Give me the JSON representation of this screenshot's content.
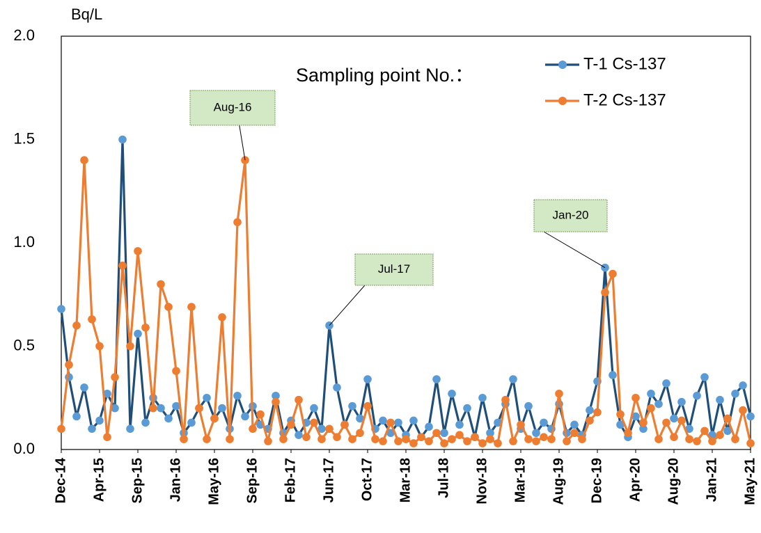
{
  "chart_data": {
    "type": "line",
    "y_label": "Bq/L",
    "legend_title": "Sampling point No.：",
    "categories": [
      "Dec-14",
      null,
      null,
      null,
      null,
      "Apr-15",
      null,
      null,
      null,
      null,
      "Sep-15",
      null,
      null,
      null,
      null,
      "Jan-16",
      null,
      null,
      null,
      null,
      "May-16",
      null,
      null,
      null,
      null,
      "Sep-16",
      null,
      null,
      null,
      null,
      "Feb-17",
      null,
      null,
      null,
      null,
      "Jun-17",
      null,
      null,
      null,
      null,
      "Oct-17",
      null,
      null,
      null,
      null,
      "Mar-18",
      null,
      null,
      null,
      null,
      "Jul-18",
      null,
      null,
      null,
      null,
      "Nov-18",
      null,
      null,
      null,
      null,
      "Mar-19",
      null,
      null,
      null,
      null,
      "Aug-19",
      null,
      null,
      null,
      null,
      "Dec-19",
      null,
      null,
      null,
      null,
      "Apr-20",
      null,
      null,
      null,
      null,
      "Aug-20",
      null,
      null,
      null,
      null,
      "Jan-21",
      null,
      null,
      null,
      null,
      "May-21"
    ],
    "series": [
      {
        "name": "T-1 Cs-137",
        "color": "#1f4e79",
        "marker_color": "#5b9bd5",
        "values": [
          0.68,
          0.35,
          0.16,
          0.3,
          0.1,
          0.14,
          0.27,
          0.2,
          1.5,
          0.1,
          0.56,
          0.13,
          0.25,
          0.2,
          0.15,
          0.21,
          0.08,
          0.13,
          0.2,
          0.25,
          0.15,
          0.2,
          0.1,
          0.26,
          0.16,
          0.21,
          0.12,
          0.1,
          0.26,
          0.08,
          0.14,
          0.07,
          0.13,
          0.2,
          0.1,
          0.6,
          0.3,
          0.12,
          0.21,
          0.15,
          0.34,
          0.1,
          0.14,
          0.08,
          0.13,
          0.07,
          0.14,
          0.06,
          0.11,
          0.34,
          0.08,
          0.27,
          0.12,
          0.2,
          0.06,
          0.25,
          0.08,
          0.13,
          0.22,
          0.34,
          0.1,
          0.21,
          0.08,
          0.13,
          0.1,
          0.22,
          0.08,
          0.12,
          0.07,
          0.19,
          0.33,
          0.88,
          0.36,
          0.12,
          0.06,
          0.16,
          0.1,
          0.27,
          0.22,
          0.32,
          0.15,
          0.23,
          0.1,
          0.26,
          0.35,
          0.07,
          0.24,
          0.09,
          0.27,
          0.31,
          0.16
        ]
      },
      {
        "name": "T-2 Cs-137",
        "color": "#ed7d31",
        "marker_color": "#ed7d31",
        "values": [
          0.1,
          0.41,
          0.6,
          1.4,
          0.63,
          0.5,
          0.06,
          0.35,
          0.89,
          0.5,
          0.96,
          0.59,
          0.2,
          0.8,
          0.69,
          0.38,
          0.05,
          0.69,
          0.2,
          0.05,
          0.15,
          0.64,
          0.05,
          1.1,
          1.4,
          0.1,
          0.17,
          0.04,
          0.23,
          0.05,
          0.12,
          0.24,
          0.06,
          0.13,
          0.05,
          0.1,
          0.06,
          0.12,
          0.05,
          0.08,
          0.21,
          0.05,
          0.04,
          0.13,
          0.04,
          0.05,
          0.03,
          0.06,
          0.04,
          0.08,
          0.03,
          0.05,
          0.07,
          0.04,
          0.06,
          0.03,
          0.05,
          0.03,
          0.24,
          0.04,
          0.12,
          0.05,
          0.04,
          0.06,
          0.05,
          0.27,
          0.04,
          0.08,
          0.05,
          0.14,
          0.18,
          0.76,
          0.85,
          0.17,
          0.08,
          0.25,
          0.13,
          0.2,
          0.05,
          0.13,
          0.06,
          0.14,
          0.05,
          0.04,
          0.09,
          0.04,
          0.07,
          0.15,
          0.05,
          0.19,
          0.03
        ]
      }
    ],
    "ylim": [
      0,
      2
    ],
    "yticks": [
      {
        "value": 0,
        "label": "0.0"
      },
      {
        "value": 0.5,
        "label": "0.5"
      },
      {
        "value": 1,
        "label": "1.0"
      },
      {
        "value": 1.5,
        "label": "1.5"
      },
      {
        "value": 2,
        "label": "2.0"
      }
    ],
    "grid": false,
    "annotations": [
      "Aug-16",
      "Jul-17",
      "Jan-20"
    ]
  }
}
